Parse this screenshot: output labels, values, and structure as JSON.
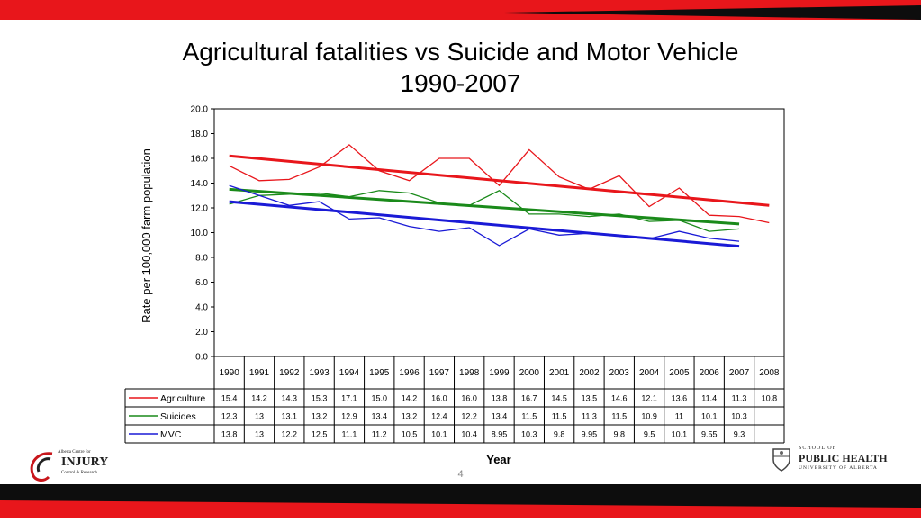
{
  "slide": {
    "title_line1": "Agricultural fatalities vs Suicide and Motor Vehicle",
    "title_line2": "1990-2007",
    "page_number": "4",
    "band_colors": {
      "red": "#e8161b",
      "black": "#0d0d0d"
    }
  },
  "logos": {
    "left": {
      "line1": "Alberta Centre for",
      "line2": "INJURY",
      "line3": "Control & Research"
    },
    "right": {
      "line1": "SCHOOL OF",
      "line2": "PUBLIC HEALTH",
      "line3": "UNIVERSITY OF ALBERTA"
    }
  },
  "chart_data": {
    "type": "line",
    "title": "Agricultural fatalities vs Suicide and Motor Vehicle 1990-2007",
    "ylabel": "Rate per 100,000 farm population",
    "xlabel": "Year",
    "ylim": [
      0,
      20
    ],
    "yticks": [
      "0.0",
      "2.0",
      "4.0",
      "6.0",
      "8.0",
      "10.0",
      "12.0",
      "14.0",
      "16.0",
      "18.0",
      "20.0"
    ],
    "categories": [
      "1990",
      "1991",
      "1992",
      "1993",
      "1994",
      "1995",
      "1996",
      "1997",
      "1998",
      "1999",
      "2000",
      "2001",
      "2002",
      "2003",
      "2004",
      "2005",
      "2006",
      "2007",
      "2008"
    ],
    "grid": false,
    "legend": "data table below chart",
    "series": [
      {
        "name": "Agriculture",
        "color": "#e8161b",
        "values": [
          15.4,
          14.2,
          14.3,
          15.3,
          17.1,
          15.0,
          14.2,
          16.0,
          16.0,
          13.8,
          16.7,
          14.5,
          13.5,
          14.6,
          12.1,
          13.6,
          11.4,
          11.3,
          10.8
        ],
        "table": [
          "15.4",
          "14.2",
          "14.3",
          "15.3",
          "17.1",
          "15.0",
          "14.2",
          "16.0",
          "16.0",
          "13.8",
          "16.7",
          "14.5",
          "13.5",
          "14.6",
          "12.1",
          "13.6",
          "11.4",
          "11.3",
          "10.8"
        ],
        "trend": [
          16.2,
          12.2
        ]
      },
      {
        "name": "Suicides",
        "color": "#1a8a1a",
        "values": [
          12.3,
          13,
          13.1,
          13.2,
          12.9,
          13.4,
          13.2,
          12.4,
          12.2,
          13.4,
          11.5,
          11.5,
          11.3,
          11.5,
          10.9,
          11,
          10.1,
          10.3,
          null
        ],
        "table": [
          "12.3",
          "13",
          "13.1",
          "13.2",
          "12.9",
          "13.4",
          "13.2",
          "12.4",
          "12.2",
          "13.4",
          "11.5",
          "11.5",
          "11.3",
          "11.5",
          "10.9",
          "11",
          "10.1",
          "10.3",
          ""
        ],
        "trend": [
          13.5,
          10.7
        ]
      },
      {
        "name": "MVC",
        "color": "#1a1ad6",
        "values": [
          13.8,
          13,
          12.2,
          12.5,
          11.1,
          11.2,
          10.5,
          10.1,
          10.4,
          8.95,
          10.3,
          9.8,
          9.95,
          9.8,
          9.5,
          10.1,
          9.55,
          9.3,
          null
        ],
        "table": [
          "13.8",
          "13",
          "12.2",
          "12.5",
          "11.1",
          "11.2",
          "10.5",
          "10.1",
          "10.4",
          "8.95",
          "10.3",
          "9.8",
          "9.95",
          "9.8",
          "9.5",
          "10.1",
          "9.55",
          "9.3",
          ""
        ],
        "trend": [
          12.5,
          8.9
        ]
      }
    ]
  }
}
